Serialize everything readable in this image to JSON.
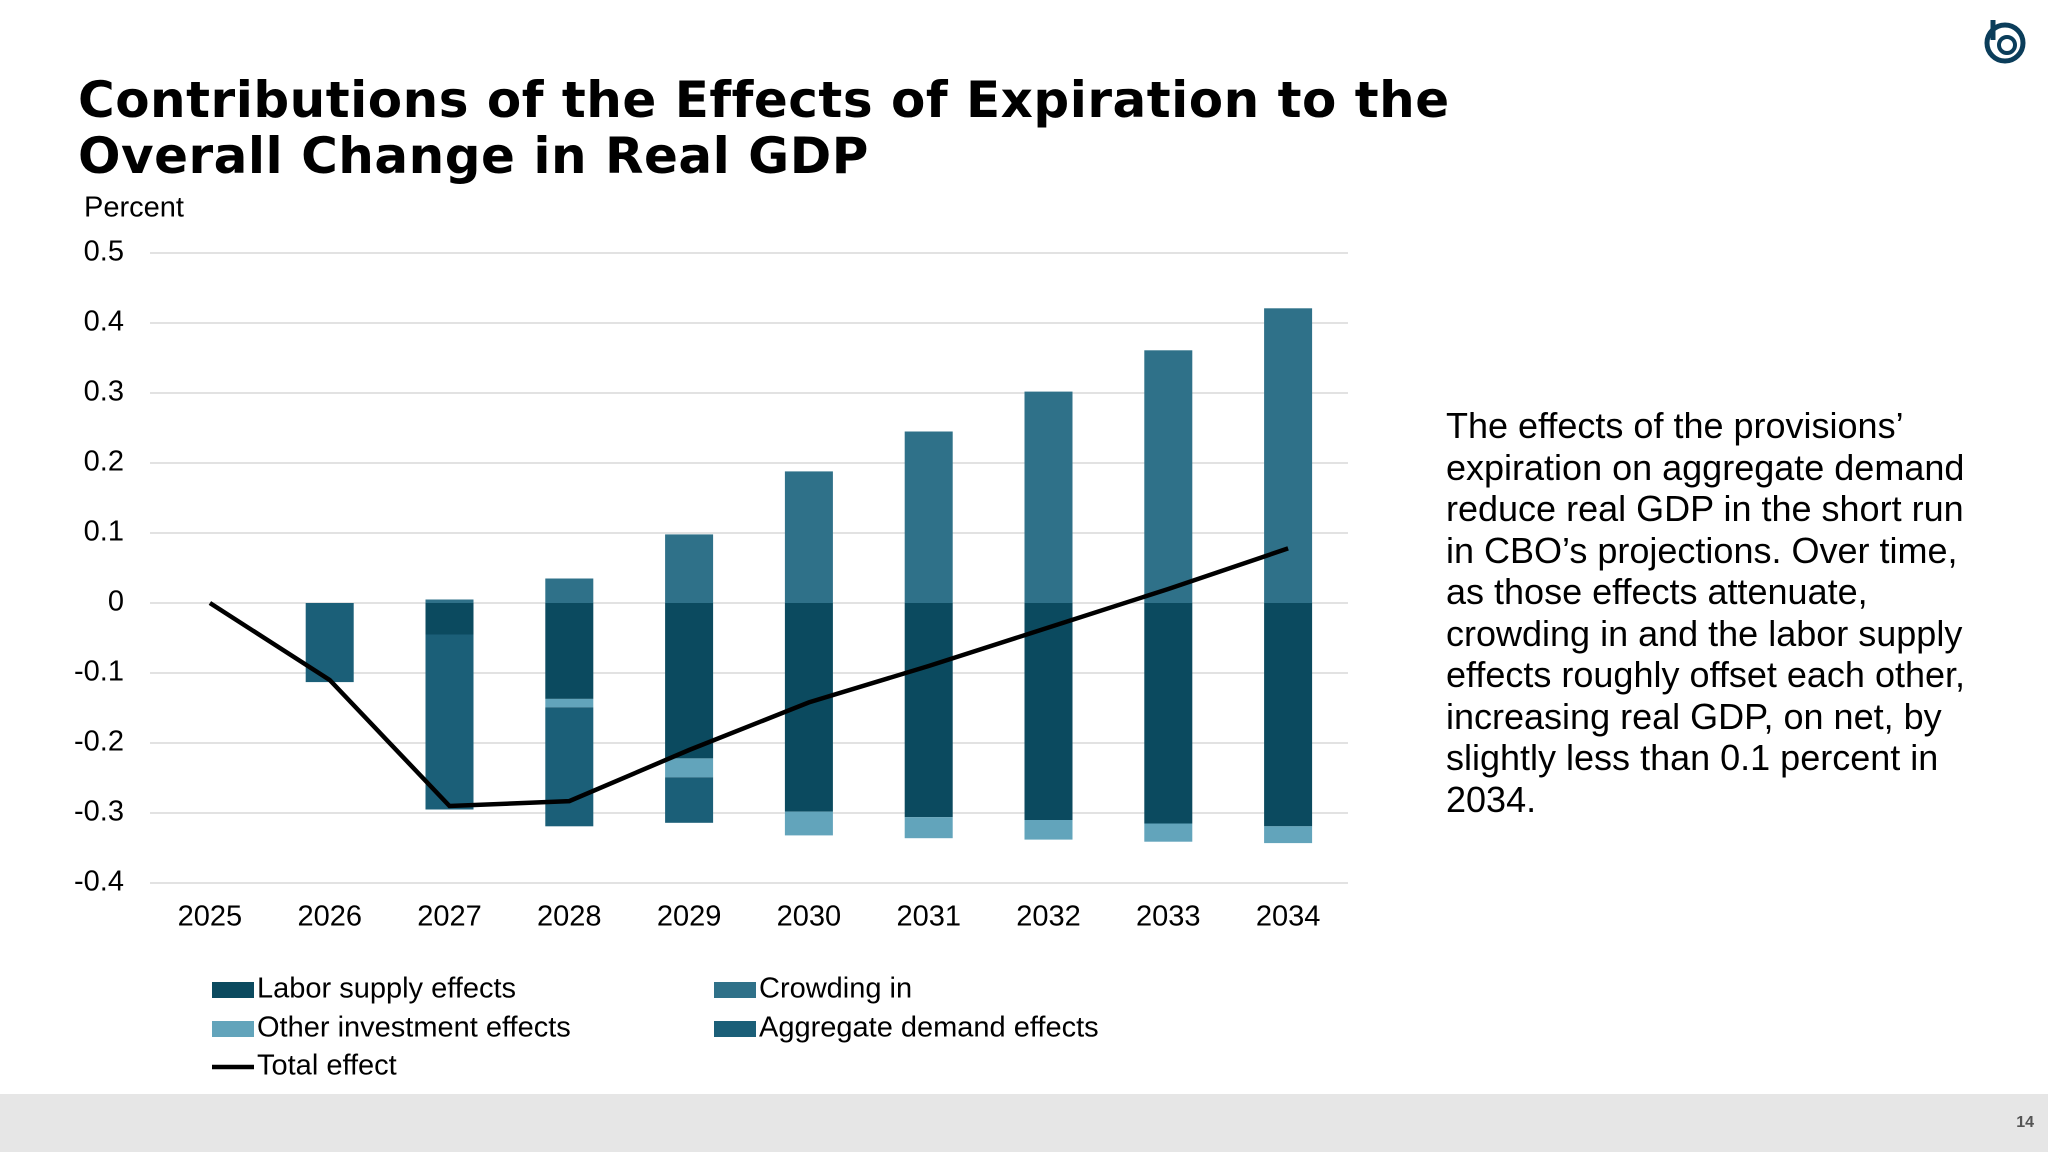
{
  "chart_data": {
    "type": "bar",
    "stacked": true,
    "title": "Contributions of the Effects of Expiration to the Overall Change in Real GDP",
    "y_label": "Percent",
    "categories": [
      "2025",
      "2026",
      "2027",
      "2028",
      "2029",
      "2030",
      "2031",
      "2032",
      "2033",
      "2034"
    ],
    "series": [
      {
        "name": "Labor supply effects",
        "color": "#0b4a5f",
        "type": "bar",
        "values": [
          0,
          0,
          -0.045,
          -0.137,
          -0.222,
          -0.298,
          -0.306,
          -0.31,
          -0.315,
          -0.319
        ]
      },
      {
        "name": "Crowding in",
        "color": "#2f7189",
        "type": "bar",
        "values": [
          0,
          0,
          0.005,
          0.035,
          0.098,
          0.188,
          0.245,
          0.302,
          0.361,
          0.421
        ]
      },
      {
        "name": "Other investment effects",
        "color": "#62a4bb",
        "type": "bar",
        "values": [
          0,
          0,
          0,
          -0.012,
          -0.027,
          -0.034,
          -0.03,
          -0.028,
          -0.026,
          -0.024
        ]
      },
      {
        "name": "Aggregate demand effects",
        "color": "#1b5f78",
        "type": "bar",
        "values": [
          0,
          -0.113,
          -0.25,
          -0.17,
          -0.065,
          0,
          0,
          0,
          0,
          0
        ]
      },
      {
        "name": "Total effect",
        "color": "#000000",
        "type": "line",
        "values": [
          0,
          -0.11,
          -0.29,
          -0.283,
          -0.21,
          -0.142,
          -0.09,
          -0.035,
          0.02,
          0.078
        ]
      }
    ],
    "ylim": [
      -0.4,
      0.5
    ],
    "yticks": [
      -0.4,
      -0.3,
      -0.2,
      -0.1,
      0,
      0.1,
      0.2,
      0.3,
      0.4,
      0.5
    ],
    "grid": true,
    "annotation": "The effects of the provisions’ expiration on aggregate demand reduce real GDP in the short run in CBO’s projections. Over time, as those effects attenuate, crowding in and the labor supply effects roughly offset each other, increasing real GDP, on net, by slightly less than 0.1 percent in 2034."
  },
  "page_number": "14"
}
